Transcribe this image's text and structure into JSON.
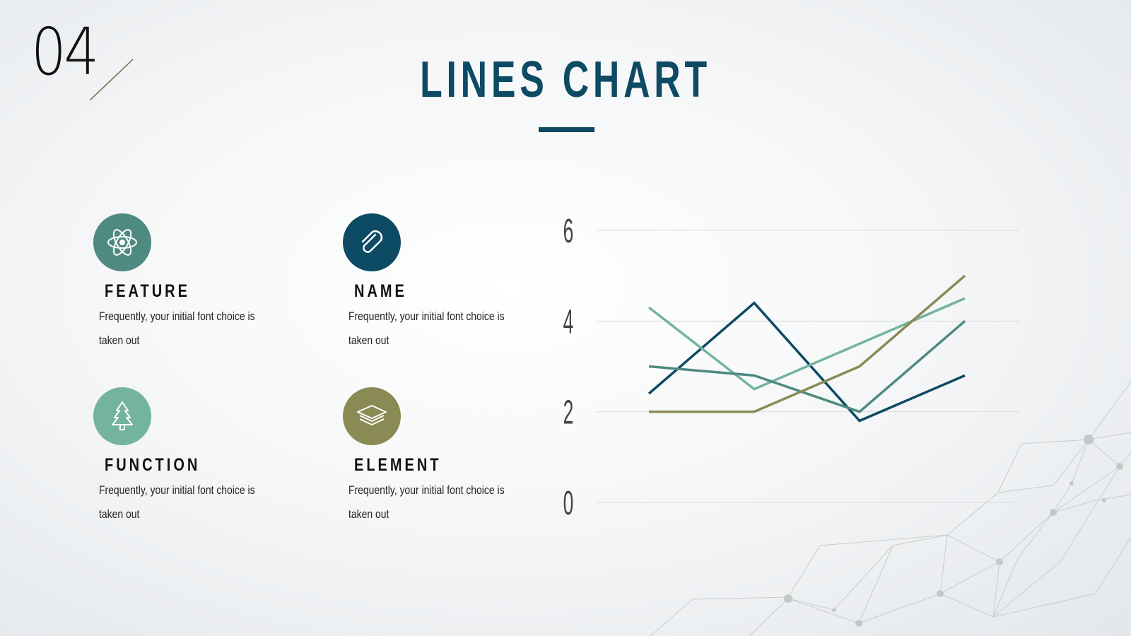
{
  "slide_number": "04",
  "title": "LINES CHART",
  "features": [
    {
      "label": "FEATURE",
      "desc": "Frequently, your initial font choice is taken out",
      "icon": "atom-icon",
      "color": "#4f8a80"
    },
    {
      "label": "NAME",
      "desc": "Frequently, your initial font choice is taken out",
      "icon": "paperclip-icon",
      "color": "#0d4a63"
    },
    {
      "label": "FUNCTION",
      "desc": "Frequently, your initial font choice is taken out",
      "icon": "tree-icon",
      "color": "#74b3a0"
    },
    {
      "label": "ELEMENT",
      "desc": "Frequently, your initial font choice is taken out",
      "icon": "layers-icon",
      "color": "#8a8a55"
    }
  ],
  "chart_data": {
    "type": "line",
    "x": [
      1,
      2,
      3,
      4
    ],
    "ylim": [
      0,
      6
    ],
    "yticks": [
      "0",
      "2",
      "4",
      "6"
    ],
    "grid": true,
    "series": [
      {
        "color": "#0d4a63",
        "values": [
          2.4,
          4.4,
          1.8,
          2.8
        ]
      },
      {
        "color": "#74b3a0",
        "values": [
          4.3,
          2.5,
          3.5,
          4.5
        ]
      },
      {
        "color": "#4f8a80",
        "values": [
          3.0,
          2.8,
          2.0,
          4.0
        ]
      },
      {
        "color": "#8a8a55",
        "values": [
          2.0,
          2.0,
          3.0,
          5.0
        ]
      }
    ]
  }
}
